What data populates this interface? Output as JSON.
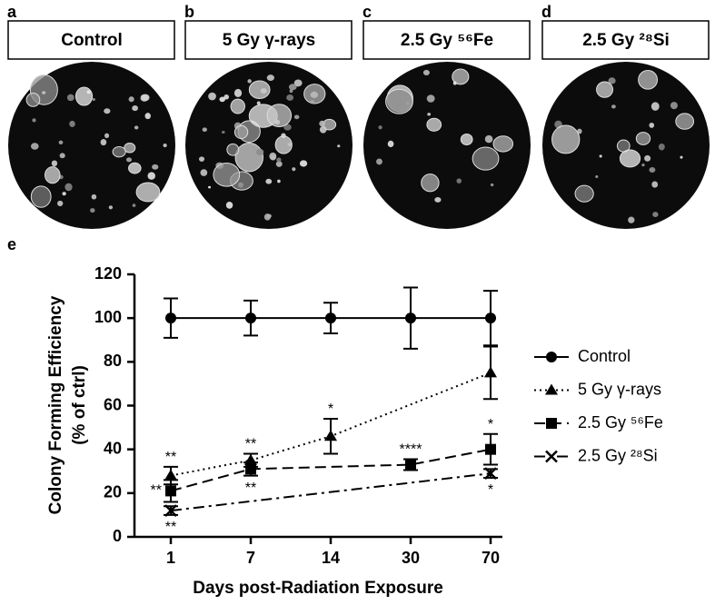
{
  "panels": [
    {
      "letter": "a",
      "title": "Control"
    },
    {
      "letter": "b",
      "title": "5 Gy γ-rays"
    },
    {
      "letter": "c",
      "title": "2.5 Gy ⁵⁶Fe"
    },
    {
      "letter": "d",
      "title": "2.5 Gy ²⁸Si"
    }
  ],
  "chart_data": {
    "type": "line",
    "letter": "e",
    "x_label": "Days post-Radiation Exposure",
    "y_label": [
      "Colony Forming Efficiency",
      "(% of ctrl)"
    ],
    "categories": [
      "1",
      "7",
      "14",
      "30",
      "70"
    ],
    "ylim": [
      0,
      120
    ],
    "yticks": [
      0,
      20,
      40,
      60,
      80,
      100,
      120
    ],
    "legend": "right",
    "series": [
      {
        "name": "Control",
        "color": "#000000",
        "marker": "circle",
        "dash": "solid",
        "x": [
          "1",
          "7",
          "14",
          "30",
          "70"
        ],
        "values": [
          100,
          100,
          100,
          100,
          100
        ],
        "errors": [
          9,
          8,
          7,
          14,
          12.5
        ]
      },
      {
        "name": "5 Gy γ-rays",
        "color": "#000000",
        "marker": "triangle",
        "dash": "dotted",
        "x": [
          "1",
          "7",
          "14",
          "70"
        ],
        "values": [
          28,
          35,
          46,
          75
        ],
        "errors": [
          4,
          3,
          8,
          12
        ]
      },
      {
        "name": "2.5 Gy ⁵⁶Fe",
        "color": "#000000",
        "marker": "square",
        "dash": "dashed",
        "x": [
          "1",
          "7",
          "30",
          "70"
        ],
        "values": [
          21,
          31,
          33,
          40
        ],
        "errors": [
          5,
          3,
          2.5,
          7
        ]
      },
      {
        "name": "2.5 Gy ²⁸Si",
        "color": "#000000",
        "marker": "cross",
        "dash": "dashdot",
        "x": [
          "1",
          "70"
        ],
        "values": [
          12,
          29
        ],
        "errors": [
          2,
          2
        ]
      }
    ],
    "annotations": [
      {
        "series": 1,
        "point": 0,
        "text": "**",
        "side": "above"
      },
      {
        "series": 1,
        "point": 1,
        "text": "**",
        "side": "above"
      },
      {
        "series": 1,
        "point": 2,
        "text": "*",
        "side": "above"
      },
      {
        "series": 2,
        "point": 0,
        "text": "**",
        "side": "left"
      },
      {
        "series": 2,
        "point": 1,
        "text": "**",
        "side": "below"
      },
      {
        "series": 2,
        "point": 2,
        "text": "****",
        "side": "above"
      },
      {
        "series": 2,
        "point": 3,
        "text": "*",
        "side": "above"
      },
      {
        "series": 3,
        "point": 0,
        "text": "**",
        "side": "below"
      },
      {
        "series": 3,
        "point": 1,
        "text": "*",
        "side": "below"
      }
    ]
  }
}
